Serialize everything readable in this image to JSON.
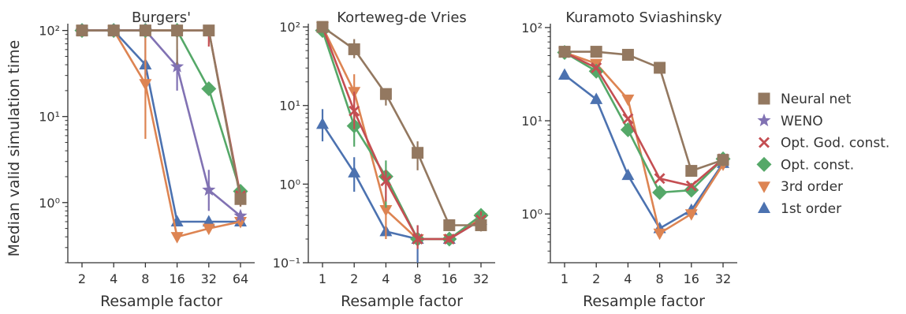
{
  "figure": {
    "ylabel": "Median valid simulation time",
    "legend_position": "right",
    "legend": [
      {
        "name": "Neural net",
        "color": "#937860",
        "marker": "square"
      },
      {
        "name": "WENO",
        "color": "#8172b3",
        "marker": "star"
      },
      {
        "name": "Opt. God. const.",
        "color": "#c44e52",
        "marker": "x"
      },
      {
        "name": "Opt. const.",
        "color": "#55a868",
        "marker": "diamond"
      },
      {
        "name": "3rd order",
        "color": "#dd8452",
        "marker": "triangle-down"
      },
      {
        "name": "1st order",
        "color": "#4c72b0",
        "marker": "triangle-up"
      }
    ]
  },
  "chart_data": [
    {
      "type": "line",
      "title": "Burgers'",
      "xlabel": "Resample factor",
      "ylabel": "Median valid simulation time",
      "yscale": "log",
      "ylim": [
        0.2,
        120
      ],
      "categories": [
        "2",
        "4",
        "8",
        "16",
        "32",
        "64"
      ],
      "yticks": [
        {
          "value": 1,
          "label": "10⁰"
        },
        {
          "value": 10,
          "label": "10¹"
        },
        {
          "value": 100,
          "label": "10²"
        }
      ],
      "series": [
        {
          "name": "1st order",
          "values": [
            100,
            100,
            40,
            0.6,
            0.6,
            0.6
          ],
          "errors": [
            [
              100,
              100
            ],
            [
              100,
              100
            ],
            [
              25,
              100
            ],
            [
              0.6,
              0.6
            ],
            [
              0.6,
              0.6
            ],
            [
              0.6,
              0.6
            ]
          ]
        },
        {
          "name": "3rd order",
          "values": [
            100,
            100,
            24,
            0.4,
            0.5,
            0.6
          ],
          "errors": [
            [
              100,
              100
            ],
            [
              100,
              100
            ],
            [
              5.5,
              100
            ],
            [
              0.38,
              0.45
            ],
            [
              0.48,
              0.55
            ],
            [
              0.55,
              0.7
            ]
          ]
        },
        {
          "name": "Opt. const.",
          "values": [
            100,
            100,
            100,
            100,
            21,
            1.35
          ],
          "errors": [
            [
              100,
              100
            ],
            [
              100,
              100
            ],
            [
              100,
              100
            ],
            [
              100,
              100
            ],
            [
              19,
              23
            ],
            [
              1.2,
              1.5
            ]
          ]
        },
        {
          "name": "Opt. God. const.",
          "values": [
            100,
            100,
            100,
            100,
            100,
            1.2
          ],
          "errors": [
            [
              100,
              100
            ],
            [
              100,
              100
            ],
            [
              100,
              100
            ],
            [
              100,
              100
            ],
            [
              65,
              100
            ],
            [
              0.9,
              1.3
            ]
          ]
        },
        {
          "name": "WENO",
          "values": [
            100,
            100,
            100,
            38,
            1.4,
            0.7
          ],
          "errors": [
            [
              100,
              100
            ],
            [
              100,
              100
            ],
            [
              100,
              100
            ],
            [
              20,
              60
            ],
            [
              0.8,
              2.4
            ],
            [
              0.6,
              0.8
            ]
          ]
        },
        {
          "name": "Neural net",
          "values": [
            100,
            100,
            100,
            100,
            100,
            1.1
          ],
          "errors": [
            [
              100,
              100
            ],
            [
              100,
              100
            ],
            [
              100,
              100
            ],
            [
              40,
              100
            ],
            [
              100,
              100
            ],
            [
              0.9,
              1.3
            ]
          ]
        }
      ]
    },
    {
      "type": "line",
      "title": "Korteweg-de Vries",
      "xlabel": "Resample factor",
      "yscale": "log",
      "ylim": [
        0.1,
        110
      ],
      "categories": [
        "1",
        "2",
        "4",
        "8",
        "16",
        "32"
      ],
      "yticks": [
        {
          "value": 0.1,
          "label": "10⁻¹"
        },
        {
          "value": 1,
          "label": "10⁰"
        },
        {
          "value": 10,
          "label": "10¹"
        },
        {
          "value": 100,
          "label": "10²"
        }
      ],
      "series": [
        {
          "name": "1st order",
          "values": [
            5.8,
            1.4,
            0.25,
            0.2,
            0.2,
            0.35
          ],
          "errors": [
            [
              3.5,
              9
            ],
            [
              0.8,
              2.2
            ],
            [
              0.22,
              0.28
            ],
            [
              0.1,
              0.3
            ],
            [
              0.18,
              0.22
            ],
            [
              0.3,
              0.4
            ]
          ]
        },
        {
          "name": "3rd order",
          "values": [
            100,
            15,
            0.47,
            0.2,
            0.2,
            0.37
          ],
          "errors": [
            [
              90,
              110
            ],
            [
              5,
              25
            ],
            [
              0.2,
              0.7
            ],
            [
              0.18,
              0.22
            ],
            [
              0.18,
              0.22
            ],
            [
              0.32,
              0.42
            ]
          ]
        },
        {
          "name": "Opt. const.",
          "values": [
            90,
            5.5,
            1.25,
            0.2,
            0.2,
            0.4
          ],
          "errors": [
            [
              80,
              100
            ],
            [
              3,
              8
            ],
            [
              0.5,
              2
            ],
            [
              0.18,
              0.22
            ],
            [
              0.18,
              0.22
            ],
            [
              0.35,
              0.48
            ]
          ]
        },
        {
          "name": "Opt. God. const.",
          "values": [
            100,
            8.5,
            1.1,
            0.2,
            0.2,
            0.35
          ],
          "errors": [
            [
              90,
              110
            ],
            [
              5,
              15
            ],
            [
              0.6,
              1.5
            ],
            [
              0.15,
              0.3
            ],
            [
              0.18,
              0.22
            ],
            [
              0.3,
              0.45
            ]
          ]
        },
        {
          "name": "Neural net",
          "values": [
            100,
            52,
            14,
            2.5,
            0.3,
            0.3
          ],
          "errors": [
            [
              95,
              110
            ],
            [
              40,
              70
            ],
            [
              10,
              16
            ],
            [
              1.5,
              3.5
            ],
            [
              0.28,
              0.32
            ],
            [
              0.25,
              0.4
            ]
          ]
        }
      ]
    },
    {
      "type": "line",
      "title": "Kuramoto Sviashinsky",
      "xlabel": "Resample factor",
      "yscale": "log",
      "ylim": [
        0.3,
        110
      ],
      "categories": [
        "1",
        "2",
        "4",
        "8",
        "16",
        "32"
      ],
      "yticks": [
        {
          "value": 1,
          "label": "10⁰"
        },
        {
          "value": 10,
          "label": "10¹"
        },
        {
          "value": 100,
          "label": "10²"
        }
      ],
      "series": [
        {
          "name": "1st order",
          "values": [
            31,
            17,
            2.6,
            0.7,
            1.1,
            3.5
          ],
          "errors": [
            [
              31,
              31
            ],
            [
              17,
              17
            ],
            [
              2.6,
              2.6
            ],
            [
              0.7,
              0.7
            ],
            [
              1.1,
              1.1
            ],
            [
              3.3,
              3.7
            ]
          ]
        },
        {
          "name": "3rd order",
          "values": [
            54,
            41,
            17,
            0.62,
            1.0,
            3.4
          ],
          "errors": [
            [
              54,
              54
            ],
            [
              41,
              41
            ],
            [
              17,
              17
            ],
            [
              0.6,
              0.65
            ],
            [
              1.0,
              1.0
            ],
            [
              3.2,
              3.6
            ]
          ]
        },
        {
          "name": "Opt. const.",
          "values": [
            54,
            34,
            8,
            1.7,
            1.8,
            3.9
          ],
          "errors": [
            [
              54,
              54
            ],
            [
              34,
              34
            ],
            [
              8,
              8
            ],
            [
              1.7,
              1.7
            ],
            [
              1.8,
              1.8
            ],
            [
              3.7,
              4.1
            ]
          ]
        },
        {
          "name": "Opt. God. const.",
          "values": [
            54,
            37,
            10.5,
            2.4,
            2.0,
            3.9
          ],
          "errors": [
            [
              54,
              54
            ],
            [
              37,
              37
            ],
            [
              10.5,
              10.5
            ],
            [
              2.4,
              2.4
            ],
            [
              2.0,
              2.0
            ],
            [
              3.7,
              4.1
            ]
          ]
        },
        {
          "name": "Neural net",
          "values": [
            55,
            55,
            51,
            37,
            2.9,
            3.8
          ],
          "errors": [
            [
              55,
              55
            ],
            [
              55,
              55
            ],
            [
              47,
              56
            ],
            [
              37,
              37
            ],
            [
              2.7,
              3.1
            ],
            [
              3.5,
              4.1
            ]
          ]
        }
      ]
    }
  ]
}
